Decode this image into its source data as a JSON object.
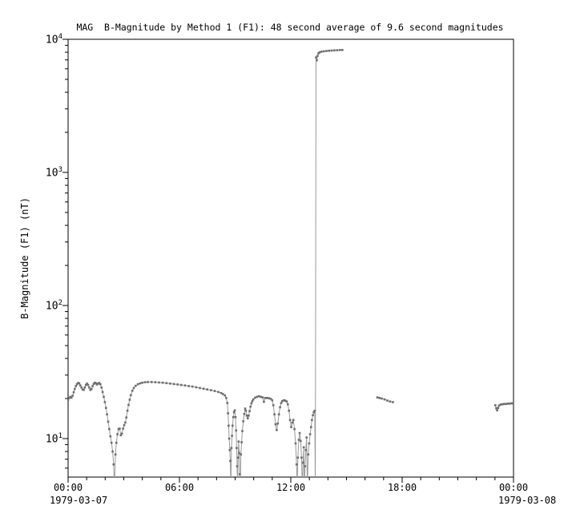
{
  "chart_data": {
    "type": "line",
    "title": "MAG  B-Magnitude by Method 1 (F1): 48 second average of 9.6 second magnitudes",
    "ylabel": "B-Magnitude (F1) (nT)",
    "xlabel": "",
    "x_axis_unit": "time (hours)",
    "xlim_hours": [
      0,
      24
    ],
    "ylim": [
      5.15,
      10000
    ],
    "y_scale": "log",
    "grid": false,
    "legend": "none",
    "x_ticks": [
      {
        "t": 0,
        "label": "00:00"
      },
      {
        "t": 6,
        "label": "06:00"
      },
      {
        "t": 12,
        "label": "12:00"
      },
      {
        "t": 18,
        "label": "18:00"
      },
      {
        "t": 24,
        "label": "00:00"
      }
    ],
    "x_date_labels": [
      {
        "t": 0,
        "label": "1979-03-07"
      },
      {
        "t": 24,
        "label": "1979-03-08"
      }
    ],
    "y_ticks": [
      {
        "base": "10",
        "exp": "4",
        "value": 10000
      },
      {
        "base": "10",
        "exp": "3",
        "value": 1000
      },
      {
        "base": "10",
        "exp": "2",
        "value": 100
      },
      {
        "base": "10",
        "exp": "1",
        "value": 10
      }
    ],
    "marker_color": "#6e6e6e",
    "line_color": "#9a9a9a",
    "axis_color": "#000000",
    "off_scale_low_value": 4.2,
    "segments": [
      [
        [
          0.0,
          19.5
        ],
        [
          0.06,
          20.2
        ],
        [
          0.12,
          20.6
        ],
        [
          0.18,
          20.3
        ],
        [
          0.24,
          21.0
        ],
        [
          0.3,
          22.3
        ],
        [
          0.36,
          23.6
        ],
        [
          0.42,
          24.8
        ],
        [
          0.48,
          25.6
        ],
        [
          0.54,
          26.2
        ],
        [
          0.6,
          26.0
        ],
        [
          0.66,
          25.1
        ],
        [
          0.72,
          24.2
        ],
        [
          0.78,
          23.4
        ],
        [
          0.84,
          23.2
        ],
        [
          0.9,
          24.2
        ],
        [
          0.96,
          25.3
        ],
        [
          1.02,
          25.9
        ],
        [
          1.08,
          25.3
        ],
        [
          1.14,
          24.2
        ],
        [
          1.2,
          23.2
        ],
        [
          1.26,
          23.6
        ],
        [
          1.32,
          24.8
        ],
        [
          1.38,
          25.8
        ],
        [
          1.44,
          26.3
        ],
        [
          1.5,
          26.0
        ],
        [
          1.56,
          25.5
        ],
        [
          1.62,
          25.9
        ],
        [
          1.68,
          26.2
        ],
        [
          1.74,
          25.6
        ],
        [
          1.8,
          24.2
        ],
        [
          1.86,
          22.4
        ],
        [
          1.92,
          20.6
        ],
        [
          1.98,
          18.8
        ],
        [
          2.04,
          17.0
        ],
        [
          2.1,
          15.2
        ],
        [
          2.16,
          13.4
        ],
        [
          2.22,
          11.8
        ],
        [
          2.28,
          10.4
        ],
        [
          2.34,
          9.3
        ],
        [
          2.4,
          8.0
        ],
        [
          2.45,
          6.4
        ],
        [
          2.5,
          4.2
        ],
        [
          2.55,
          7.6
        ],
        [
          2.6,
          9.3
        ],
        [
          2.66,
          10.8
        ],
        [
          2.72,
          11.8
        ],
        [
          2.78,
          11.9
        ],
        [
          2.84,
          10.6
        ],
        [
          2.9,
          10.9
        ],
        [
          2.96,
          11.9
        ],
        [
          3.02,
          12.6
        ],
        [
          3.08,
          13.2
        ],
        [
          3.14,
          14.4
        ],
        [
          3.2,
          16.2
        ],
        [
          3.26,
          17.9
        ],
        [
          3.32,
          19.6
        ],
        [
          3.38,
          21.2
        ],
        [
          3.46,
          22.9
        ],
        [
          3.54,
          24.0
        ],
        [
          3.64,
          24.9
        ],
        [
          3.76,
          25.6
        ],
        [
          3.88,
          26.0
        ],
        [
          4.0,
          26.3
        ],
        [
          4.15,
          26.5
        ],
        [
          4.3,
          26.6
        ],
        [
          4.5,
          26.6
        ],
        [
          4.7,
          26.5
        ],
        [
          4.9,
          26.4
        ],
        [
          5.1,
          26.3
        ],
        [
          5.3,
          26.1
        ],
        [
          5.5,
          25.9
        ],
        [
          5.7,
          25.7
        ],
        [
          5.9,
          25.5
        ],
        [
          6.1,
          25.3
        ],
        [
          6.3,
          25.1
        ],
        [
          6.5,
          24.8
        ],
        [
          6.7,
          24.6
        ],
        [
          6.9,
          24.3
        ],
        [
          7.1,
          24.0
        ],
        [
          7.3,
          23.7
        ],
        [
          7.5,
          23.4
        ],
        [
          7.7,
          23.1
        ],
        [
          7.9,
          22.8
        ],
        [
          8.1,
          22.4
        ],
        [
          8.25,
          22.0
        ],
        [
          8.35,
          21.6
        ],
        [
          8.45,
          21.1
        ],
        [
          8.52,
          20.2
        ],
        [
          8.58,
          18.5
        ],
        [
          8.62,
          15.5
        ],
        [
          8.65,
          12.5
        ],
        [
          8.68,
          10.0
        ],
        [
          8.71,
          8.2
        ],
        [
          8.74,
          6.8
        ],
        [
          8.77,
          4.2
        ],
        [
          8.8,
          8.5
        ],
        [
          8.83,
          10.5
        ],
        [
          8.86,
          12.5
        ],
        [
          8.9,
          14.5
        ],
        [
          8.94,
          15.8
        ],
        [
          8.98,
          16.3
        ],
        [
          9.02,
          14.5
        ],
        [
          9.05,
          11.5
        ],
        [
          9.08,
          8.5
        ],
        [
          9.11,
          6.2
        ],
        [
          9.13,
          4.2
        ],
        [
          9.16,
          7.2
        ],
        [
          9.19,
          9.5
        ],
        [
          9.22,
          7.8
        ],
        [
          9.25,
          5.4
        ],
        [
          9.27,
          4.2
        ],
        [
          9.31,
          7.6
        ],
        [
          9.35,
          9.4
        ],
        [
          9.39,
          11.4
        ],
        [
          9.44,
          13.5
        ],
        [
          9.49,
          15.3
        ],
        [
          9.54,
          16.8
        ],
        [
          9.58,
          16.2
        ],
        [
          9.63,
          14.9
        ],
        [
          9.68,
          14.2
        ],
        [
          9.73,
          14.9
        ],
        [
          9.78,
          16.1
        ],
        [
          9.83,
          17.4
        ],
        [
          9.88,
          18.4
        ],
        [
          9.93,
          19.1
        ],
        [
          9.98,
          19.7
        ],
        [
          10.08,
          20.3
        ],
        [
          10.18,
          20.6
        ],
        [
          10.28,
          20.8
        ],
        [
          10.38,
          20.6
        ],
        [
          10.48,
          20.4
        ],
        [
          10.55,
          18.9
        ],
        [
          10.62,
          20.2
        ],
        [
          10.72,
          20.2
        ],
        [
          10.82,
          20.1
        ],
        [
          10.92,
          19.9
        ],
        [
          11.0,
          19.4
        ],
        [
          11.06,
          17.8
        ],
        [
          11.12,
          15.2
        ],
        [
          11.18,
          12.8
        ],
        [
          11.24,
          11.6
        ],
        [
          11.3,
          13.0
        ],
        [
          11.36,
          15.2
        ],
        [
          11.42,
          17.2
        ],
        [
          11.48,
          18.5
        ],
        [
          11.54,
          19.1
        ],
        [
          11.62,
          19.4
        ],
        [
          11.7,
          19.3
        ],
        [
          11.78,
          19.0
        ],
        [
          11.84,
          18.1
        ],
        [
          11.9,
          16.2
        ],
        [
          11.96,
          13.8
        ],
        [
          12.02,
          12.2
        ],
        [
          12.08,
          13.2
        ],
        [
          12.14,
          13.8
        ],
        [
          12.2,
          11.8
        ],
        [
          12.26,
          9.2
        ],
        [
          12.31,
          6.4
        ],
        [
          12.34,
          4.2
        ],
        [
          12.38,
          7.2
        ],
        [
          12.43,
          9.8
        ],
        [
          12.48,
          11.0
        ],
        [
          12.53,
          9.6
        ],
        [
          12.58,
          7.2
        ],
        [
          12.62,
          4.2
        ],
        [
          12.66,
          6.6
        ],
        [
          12.7,
          8.6
        ],
        [
          12.73,
          4.2
        ],
        [
          12.77,
          6.2
        ],
        [
          12.81,
          8.2
        ],
        [
          12.85,
          10.2
        ],
        [
          12.89,
          4.2
        ],
        [
          12.94,
          7.6
        ],
        [
          12.99,
          9.2
        ],
        [
          13.04,
          10.8
        ],
        [
          13.09,
          12.2
        ],
        [
          13.14,
          13.8
        ],
        [
          13.19,
          15.0
        ],
        [
          13.24,
          15.8
        ],
        [
          13.29,
          16.2
        ],
        [
          13.32,
          4.2
        ],
        [
          13.36,
          7300
        ],
        [
          13.4,
          6950
        ],
        [
          13.44,
          7500
        ],
        [
          13.49,
          7850
        ],
        [
          13.55,
          7980
        ],
        [
          13.65,
          8060
        ],
        [
          13.78,
          8120
        ],
        [
          13.92,
          8170
        ],
        [
          14.06,
          8200
        ],
        [
          14.2,
          8230
        ],
        [
          14.35,
          8260
        ],
        [
          14.5,
          8280
        ],
        [
          14.65,
          8300
        ],
        [
          14.78,
          8310
        ]
      ],
      [
        [
          16.66,
          20.4
        ],
        [
          16.78,
          20.2
        ],
        [
          16.9,
          20.0
        ],
        [
          17.05,
          19.7
        ],
        [
          17.2,
          19.3
        ],
        [
          17.35,
          19.0
        ],
        [
          17.5,
          18.8
        ]
      ],
      [
        [
          23.02,
          17.8
        ],
        [
          23.07,
          16.9
        ],
        [
          23.12,
          16.3
        ],
        [
          23.17,
          17.0
        ],
        [
          23.22,
          17.7
        ],
        [
          23.3,
          18.0
        ],
        [
          23.4,
          18.1
        ],
        [
          23.5,
          18.2
        ],
        [
          23.6,
          18.2
        ],
        [
          23.7,
          18.3
        ],
        [
          23.8,
          18.3
        ],
        [
          23.9,
          18.4
        ],
        [
          23.98,
          18.4
        ]
      ]
    ]
  }
}
